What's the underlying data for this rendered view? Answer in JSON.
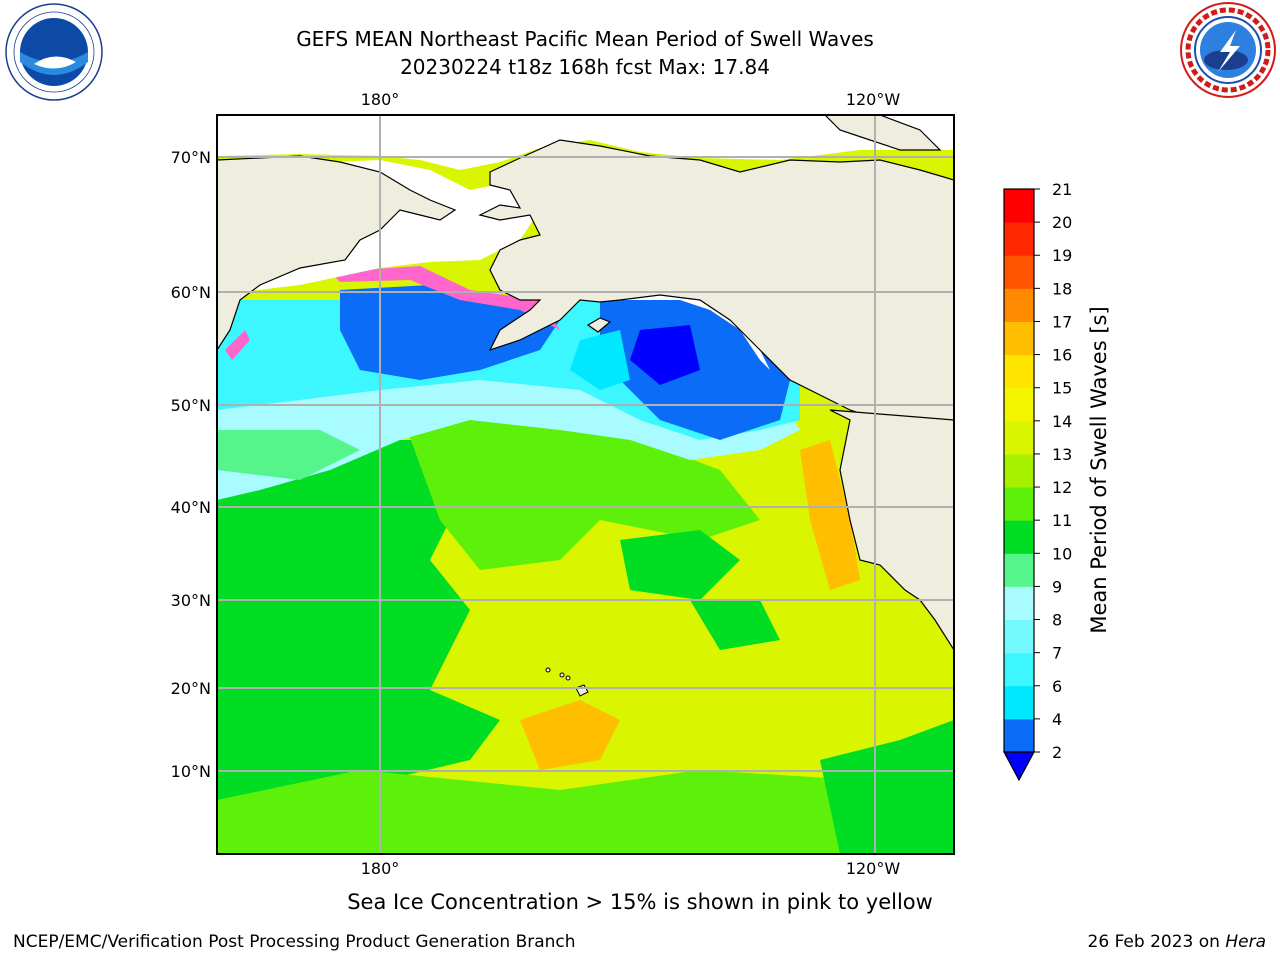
{
  "header": {
    "title_line1": "GEFS MEAN Northeast Pacific Mean Period of Swell Waves",
    "title_line2": "20230224 t18z 168h fcst   Max: 17.84"
  },
  "logos": {
    "left": "noaa-logo",
    "right": "national-weather-service-logo"
  },
  "map": {
    "projection": "lat-lon",
    "region": "Northeast Pacific",
    "lon_ticks_top": [
      "180°",
      "120°W"
    ],
    "lon_ticks_bottom": [
      "180°",
      "120°W"
    ],
    "lat_ticks": [
      "70°N",
      "60°N",
      "50°N",
      "40°N",
      "30°N",
      "20°N",
      "10°N"
    ],
    "gridlines": true,
    "land_color": "#efedde",
    "coastline_color": "#000000"
  },
  "colorbar": {
    "label": "Mean Period of Swell Waves [s]",
    "levels": [
      2,
      4,
      6,
      7,
      8,
      9,
      10,
      11,
      12,
      13,
      14,
      15,
      16,
      17,
      18,
      19,
      20,
      21
    ],
    "tick_labels": [
      "2",
      "4",
      "6",
      "7",
      "8",
      "9",
      "10",
      "11",
      "12",
      "13",
      "14",
      "15",
      "16",
      "17",
      "18",
      "19",
      "20",
      "21"
    ],
    "colors": [
      "#0a6cf7",
      "#00e8ff",
      "#3cf7ff",
      "#74f9ff",
      "#a8fbff",
      "#55f58c",
      "#00dd22",
      "#5cf00a",
      "#a6f000",
      "#d9f500",
      "#f2f700",
      "#ffe500",
      "#ffbf00",
      "#ff8a00",
      "#ff5500",
      "#ff2800",
      "#ff0000"
    ],
    "extend_min_color": "#0000ff"
  },
  "caption": "Sea Ice Concentration > 15% is shown in pink to yellow",
  "footer": {
    "left": "NCEP/EMC/Verification Post Processing Product Generation Branch",
    "right_prefix": "26 Feb 2023 on ",
    "right_host": "Hera"
  }
}
